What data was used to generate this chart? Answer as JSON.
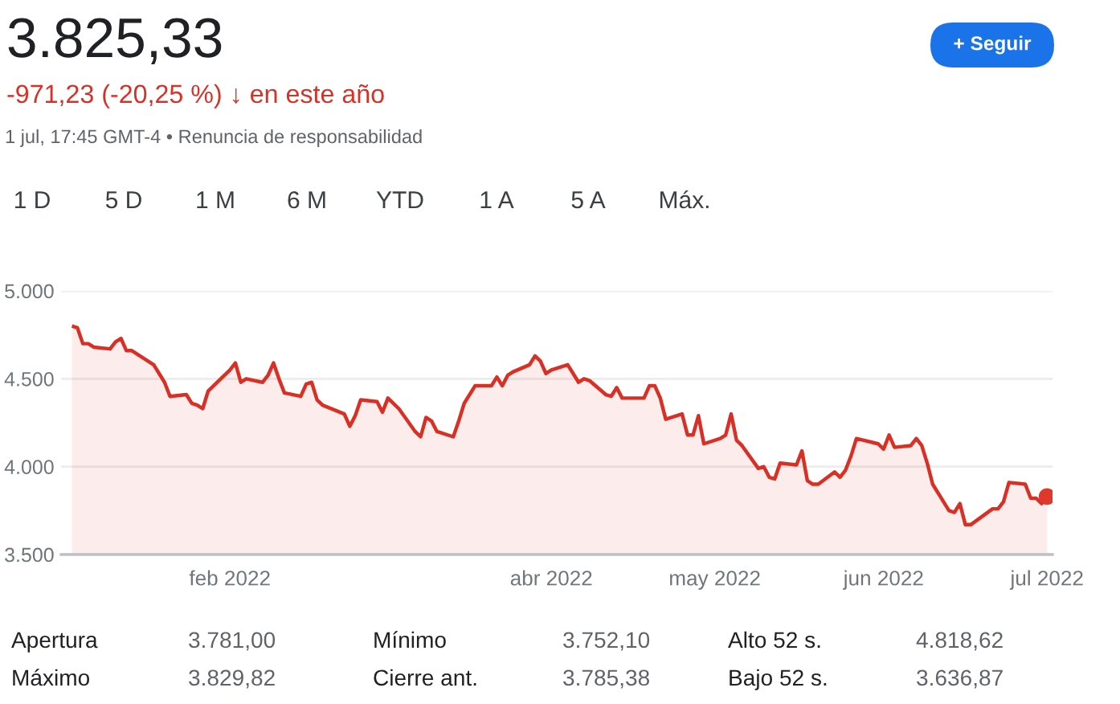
{
  "chart_data": {
    "type": "area",
    "title": "3.825,33",
    "subtitle": "-971,23 (-20,25 %) ↓ en este año",
    "annotations": [
      "1 jul, 17:45 GMT-4 • Renuncia de responsabilidad",
      "+ Seguir",
      "1 D",
      "5 D",
      "1 M",
      "6 M",
      "YTD",
      "1 A",
      "5 A",
      "Máx.",
      "Apertura",
      "3.781,00",
      "Mínimo",
      "3.752,10",
      "Alto 52 s.",
      "4.818,62",
      "Máximo",
      "3.829,82",
      "Cierre ant.",
      "3.785,38",
      "Bajo 52 s.",
      "3.636,87"
    ],
    "series": [
      {
        "color": "#d93025",
        "x": [
          "2022-01-03",
          "2022-01-04",
          "2022-01-05",
          "2022-01-06",
          "2022-01-07",
          "2022-01-10",
          "2022-01-11",
          "2022-01-12",
          "2022-01-13",
          "2022-01-14",
          "2022-01-18",
          "2022-01-19",
          "2022-01-20",
          "2022-01-21",
          "2022-01-24",
          "2022-01-25",
          "2022-01-26",
          "2022-01-27",
          "2022-01-28",
          "2022-01-31",
          "2022-02-01",
          "2022-02-02",
          "2022-02-03",
          "2022-02-04",
          "2022-02-07",
          "2022-02-08",
          "2022-02-09",
          "2022-02-10",
          "2022-02-11",
          "2022-02-14",
          "2022-02-15",
          "2022-02-16",
          "2022-02-17",
          "2022-02-18",
          "2022-02-22",
          "2022-02-23",
          "2022-02-24",
          "2022-02-25",
          "2022-02-28",
          "2022-03-01",
          "2022-03-02",
          "2022-03-03",
          "2022-03-04",
          "2022-03-07",
          "2022-03-08",
          "2022-03-09",
          "2022-03-10",
          "2022-03-11",
          "2022-03-14",
          "2022-03-15",
          "2022-03-16",
          "2022-03-17",
          "2022-03-18",
          "2022-03-21",
          "2022-03-22",
          "2022-03-23",
          "2022-03-24",
          "2022-03-25",
          "2022-03-28",
          "2022-03-29",
          "2022-03-30",
          "2022-03-31",
          "2022-04-01",
          "2022-04-04",
          "2022-04-05",
          "2022-04-06",
          "2022-04-07",
          "2022-04-08",
          "2022-04-11",
          "2022-04-12",
          "2022-04-13",
          "2022-04-14",
          "2022-04-18",
          "2022-04-19",
          "2022-04-20",
          "2022-04-21",
          "2022-04-22",
          "2022-04-25",
          "2022-04-26",
          "2022-04-27",
          "2022-04-28",
          "2022-04-29",
          "2022-05-02",
          "2022-05-03",
          "2022-05-04",
          "2022-05-05",
          "2022-05-06",
          "2022-05-09",
          "2022-05-10",
          "2022-05-11",
          "2022-05-12",
          "2022-05-13",
          "2022-05-16",
          "2022-05-17",
          "2022-05-18",
          "2022-05-19",
          "2022-05-20",
          "2022-05-23",
          "2022-05-24",
          "2022-05-25",
          "2022-05-26",
          "2022-05-27",
          "2022-05-31",
          "2022-06-01",
          "2022-06-02",
          "2022-06-03",
          "2022-06-06",
          "2022-06-07",
          "2022-06-08",
          "2022-06-09",
          "2022-06-10",
          "2022-06-13",
          "2022-06-14",
          "2022-06-15",
          "2022-06-16",
          "2022-06-17",
          "2022-06-21",
          "2022-06-22",
          "2022-06-23",
          "2022-06-24",
          "2022-06-27",
          "2022-06-28",
          "2022-06-29",
          "2022-06-30",
          "2022-07-01"
        ],
        "values": [
          4800,
          4790,
          4700,
          4700,
          4680,
          4670,
          4710,
          4730,
          4660,
          4660,
          4580,
          4530,
          4480,
          4400,
          4410,
          4360,
          4350,
          4330,
          4430,
          4520,
          4550,
          4590,
          4480,
          4500,
          4480,
          4520,
          4590,
          4500,
          4420,
          4400,
          4470,
          4480,
          4380,
          4350,
          4300,
          4230,
          4290,
          4380,
          4370,
          4310,
          4390,
          4360,
          4330,
          4200,
          4170,
          4280,
          4260,
          4200,
          4170,
          4260,
          4360,
          4410,
          4460,
          4460,
          4510,
          4460,
          4520,
          4540,
          4580,
          4630,
          4600,
          4530,
          4550,
          4580,
          4530,
          4480,
          4500,
          4490,
          4410,
          4400,
          4450,
          4390,
          4390,
          4460,
          4460,
          4390,
          4270,
          4300,
          4180,
          4180,
          4290,
          4130,
          4160,
          4180,
          4300,
          4150,
          4120,
          3990,
          4000,
          3940,
          3930,
          4020,
          4010,
          4090,
          3920,
          3900,
          3900,
          3970,
          3940,
          3980,
          4060,
          4160,
          4130,
          4100,
          4180,
          4110,
          4120,
          4160,
          4120,
          4020,
          3900,
          3750,
          3740,
          3790,
          3670,
          3670,
          3760,
          3760,
          3800,
          3910,
          3900,
          3820,
          3820,
          3790,
          3830
        ]
      },
      {
        "type": "scatter",
        "color": "#e0392c",
        "x": [
          "2022-07-01"
        ],
        "values": [
          3830
        ]
      }
    ],
    "xlim": [
      "2022-01-01",
      "2022-07-02"
    ],
    "xticks": [
      {
        "value": "2022-02-01",
        "label": "feb 2022"
      },
      {
        "value": "2022-04-01",
        "label": "abr 2022"
      },
      {
        "value": "2022-05-01",
        "label": "may 2022"
      },
      {
        "value": "2022-06-01",
        "label": "jun 2022"
      },
      {
        "value": "2022-07-01",
        "label": "jul 2022"
      }
    ],
    "ylim": [
      3500,
      5000
    ],
    "yticks": [
      {
        "value": 3500,
        "label": "3.500"
      },
      {
        "value": 4000,
        "label": "4.000"
      },
      {
        "value": 4500,
        "label": "4.500"
      },
      {
        "value": 5000,
        "label": "5.000"
      }
    ],
    "grid": "y"
  }
}
